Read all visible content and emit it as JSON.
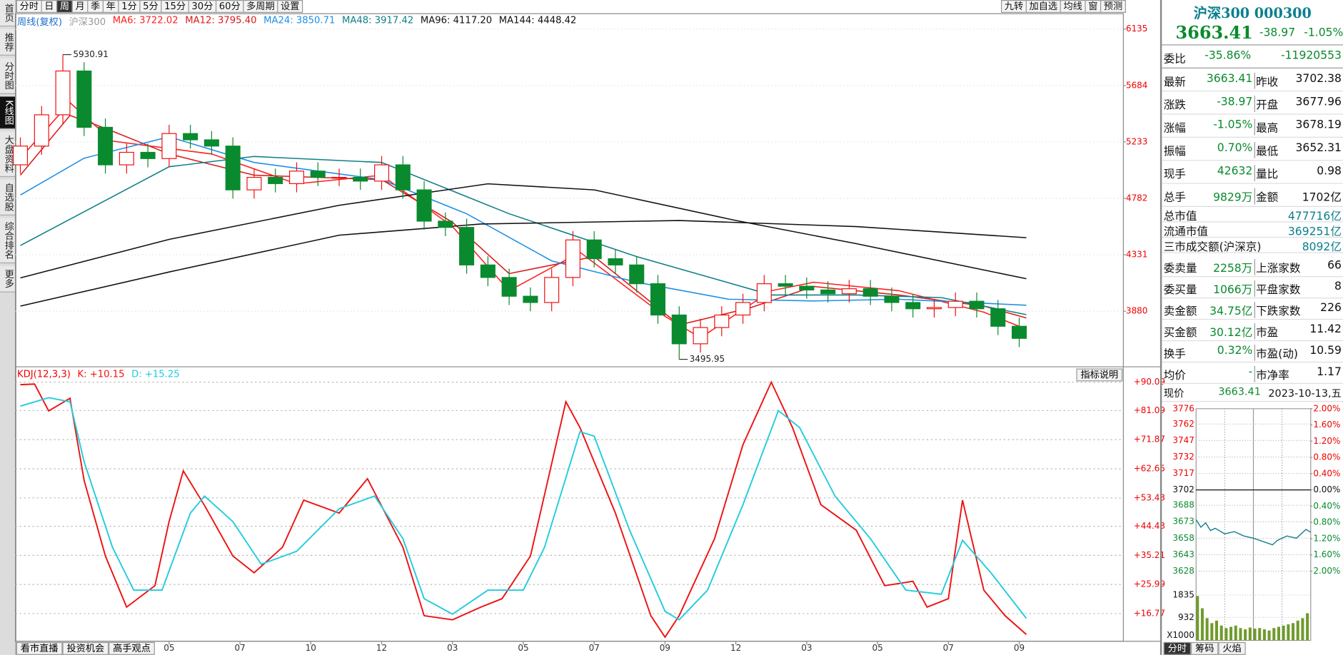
{
  "toolbar": {
    "items": [
      "分时",
      "日",
      "周",
      "月",
      "季",
      "年",
      "1分",
      "5分",
      "15分",
      "30分",
      "60分",
      "多周期",
      "设置"
    ],
    "selected": 2,
    "right_items": [
      "九转",
      "加自选",
      "均线",
      "窗",
      "预测"
    ]
  },
  "sidebar": {
    "items": [
      "首页",
      "推荐",
      "分时图",
      "K线图",
      "大盘资料",
      "自选股",
      "综合排名",
      "更多"
    ],
    "selected": 3
  },
  "bottom_tabs": [
    "看市直播",
    "投资机会",
    "高手观点"
  ],
  "indicator_button": "指标说明",
  "chart_data": [
    {
      "type": "candlestick",
      "period": "周线(复权)",
      "title": "沪深300",
      "x": [
        0,
        3,
        6,
        9,
        12,
        15,
        18,
        21,
        24,
        27,
        30,
        33,
        36,
        39,
        42,
        45,
        48,
        51,
        54,
        57,
        60,
        63,
        66,
        69,
        72,
        75,
        78,
        81,
        84,
        87,
        90,
        93,
        96,
        99,
        102,
        105,
        108,
        111,
        114,
        117,
        120,
        123,
        126,
        129,
        132,
        135,
        138,
        141
      ],
      "open": [
        5050,
        5200,
        5450,
        5800,
        5350,
        5050,
        5150,
        5100,
        5300,
        5250,
        5200,
        4850,
        4950,
        4900,
        5000,
        4950,
        4950,
        4920,
        5050,
        4850,
        4600,
        4550,
        4250,
        4150,
        4000,
        3950,
        4150,
        4450,
        4300,
        4250,
        4100,
        3850,
        3620,
        3750,
        3850,
        3950,
        4100,
        4080,
        4050,
        4020,
        4060,
        4000,
        3950,
        3900,
        3910,
        3960,
        3900,
        3760
      ],
      "high": [
        5270,
        5520,
        5930.91,
        5870,
        5420,
        5220,
        5220,
        5370,
        5370,
        5320,
        5270,
        5020,
        5020,
        5070,
        5070,
        5020,
        5020,
        5120,
        5120,
        4920,
        4670,
        4620,
        4320,
        4220,
        4070,
        4220,
        4520,
        4520,
        4370,
        4320,
        4170,
        3920,
        3820,
        3920,
        4020,
        4170,
        4170,
        4150,
        4120,
        4130,
        4130,
        4070,
        4020,
        3980,
        4030,
        4030,
        3970,
        3830
      ],
      "low": [
        4980,
        5130,
        5380,
        5280,
        4980,
        4980,
        5030,
        5030,
        5180,
        5130,
        4780,
        4780,
        4830,
        4830,
        4880,
        4880,
        4850,
        4850,
        4780,
        4530,
        4480,
        4180,
        4080,
        3930,
        3880,
        3880,
        4080,
        4230,
        4180,
        4030,
        3780,
        3495.95,
        3550,
        3680,
        3780,
        3880,
        4010,
        3980,
        3950,
        3950,
        3930,
        3880,
        3830,
        3830,
        3840,
        3830,
        3690,
        3593
      ],
      "close": [
        5200,
        5450,
        5800,
        5350,
        5050,
        5150,
        5100,
        5300,
        5250,
        5200,
        4850,
        4950,
        4900,
        5000,
        4950,
        4950,
        4920,
        5050,
        4850,
        4600,
        4550,
        4250,
        4150,
        4000,
        3950,
        4150,
        4450,
        4300,
        4250,
        4100,
        3850,
        3620,
        3750,
        3850,
        3950,
        4100,
        4080,
        4050,
        4020,
        4060,
        4000,
        3950,
        3900,
        3910,
        3960,
        3900,
        3760,
        3663.41
      ],
      "up_color": "#ee1111",
      "down_color": "#0a8a2e",
      "series": [
        {
          "name": "MA6: 3722.02",
          "color": "#ff2020",
          "x": [
            0,
            7,
            13,
            27,
            39,
            51,
            61,
            69,
            79,
            91,
            96,
            106,
            112,
            124,
            136,
            142
          ],
          "values": [
            5103,
            5547,
            5240,
            5137,
            4898,
            4967,
            4557,
            4044,
            4352,
            3839,
            3668,
            4044,
            4112,
            4044,
            3873,
            3737
          ]
        },
        {
          "name": "MA12: 3795.40",
          "color": "#d81b1b",
          "x": [
            0,
            7,
            12,
            21,
            33,
            51,
            61,
            69,
            81,
            93,
            103,
            112,
            124,
            136,
            142
          ],
          "values": [
            4967,
            5445,
            5342,
            5137,
            4967,
            4932,
            4591,
            4181,
            4317,
            3771,
            3907,
            4078,
            4010,
            3921,
            3826
          ]
        },
        {
          "name": "MA24: 3850.71",
          "color": "#1e8fe8",
          "x": [
            0,
            9,
            21,
            33,
            51,
            63,
            75,
            87,
            100,
            112,
            124,
            142
          ],
          "values": [
            4809,
            5103,
            5274,
            5069,
            4932,
            4659,
            4283,
            4112,
            3976,
            3962,
            3976,
            3928
          ]
        },
        {
          "name": "MA48: 3917.42",
          "color": "#0e7f86",
          "x": [
            0,
            21,
            33,
            51,
            69,
            87,
            106,
            118,
            130,
            142
          ],
          "values": [
            4406,
            5035,
            5117,
            5069,
            4659,
            4317,
            4010,
            4010,
            3989,
            3853
          ]
        },
        {
          "name": "MA96: 4117.20",
          "color": "#111111",
          "x": [
            0,
            21,
            45,
            66,
            81,
            101,
            118,
            142
          ],
          "values": [
            4147,
            4454,
            4727,
            4898,
            4850,
            4605,
            4420,
            4140
          ]
        },
        {
          "name": "MA144: 4448.42",
          "color": "#111111",
          "x": [
            0,
            21,
            45,
            65,
            93,
            118,
            142
          ],
          "values": [
            3921,
            4194,
            4488,
            4577,
            4605,
            4557,
            4468
          ]
        }
      ],
      "annotations": [
        {
          "x": 6,
          "value": 5930.91
        },
        {
          "x": 93,
          "value": 3495.95
        }
      ],
      "xlim": [
        -0.7,
        155.7
      ],
      "xticks": [
        {
          "value": 21,
          "label": "05"
        },
        {
          "value": 31,
          "label": "07"
        },
        {
          "value": 41,
          "label": "10"
        },
        {
          "value": 51,
          "label": "12"
        },
        {
          "value": 61,
          "label": "03"
        },
        {
          "value": 71,
          "label": "05"
        },
        {
          "value": 81,
          "label": "07"
        },
        {
          "value": 91,
          "label": "09"
        },
        {
          "value": 101,
          "label": "12"
        },
        {
          "value": 111,
          "label": "03"
        },
        {
          "value": 121,
          "label": "05"
        },
        {
          "value": 131,
          "label": "07"
        },
        {
          "value": 141,
          "label": "09"
        }
      ],
      "ylim": [
        3443,
        6258
      ],
      "yticks": [
        3880,
        4331,
        4782,
        5233,
        5684,
        6135
      ],
      "grid": true
    },
    {
      "type": "line",
      "title": "KDJ(12,3,3)",
      "series": [
        {
          "name": "K: +10.15",
          "color": "#ee1111",
          "x": [
            0,
            2,
            4,
            7,
            9,
            12,
            15,
            19,
            21,
            23,
            26,
            30,
            33,
            37,
            40,
            45,
            49,
            54,
            57,
            61,
            65,
            68,
            72,
            77,
            79,
            84,
            89,
            91,
            93,
            98,
            102,
            106,
            109,
            113,
            118,
            122,
            126,
            128,
            131,
            133,
            136,
            139,
            142
          ],
          "values": [
            89.3,
            89.5,
            81,
            85,
            59,
            35,
            18.8,
            25.6,
            46,
            62,
            51,
            35,
            29.7,
            37.8,
            52.7,
            48.6,
            59.5,
            37.8,
            16.1,
            14.8,
            18.8,
            21.5,
            35,
            83.9,
            75.7,
            48.6,
            16.1,
            9.3,
            16.1,
            40.5,
            70.3,
            90.1,
            75.7,
            51.3,
            43.2,
            25.6,
            27,
            18.8,
            21.5,
            52.7,
            24.2,
            16.1,
            10.15
          ]
        },
        {
          "name": "D: +15.25",
          "color": "#22ccdd",
          "x": [
            0,
            4,
            7,
            9,
            13,
            16,
            20,
            24,
            26,
            30,
            34,
            39,
            45,
            50,
            54,
            57,
            61,
            66,
            71,
            74,
            79,
            81,
            86,
            91,
            93,
            97,
            102,
            107,
            110,
            115,
            120,
            125,
            130,
            133,
            137,
            142
          ],
          "values": [
            82.5,
            85.2,
            83.9,
            64.9,
            37.8,
            24.2,
            24.2,
            48.6,
            54,
            45.9,
            32.4,
            36.5,
            50,
            54,
            40.5,
            21.5,
            16.6,
            24.2,
            24.2,
            37.8,
            74.4,
            73,
            43.2,
            17.5,
            14.8,
            24.2,
            51.3,
            81.1,
            75.7,
            54,
            40.5,
            24.2,
            22.9,
            40,
            29.7,
            15.25
          ]
        }
      ],
      "xlim": [
        -0.7,
        155.7
      ],
      "ylim": [
        8.0,
        94.7
      ],
      "yticks": [
        {
          "value": 16.77,
          "label": "+16.77"
        },
        {
          "value": 25.99,
          "label": "+25.99"
        },
        {
          "value": 35.21,
          "label": "+35.21"
        },
        {
          "value": 44.43,
          "label": "+44.43"
        },
        {
          "value": 53.43,
          "label": "+53.43"
        },
        {
          "value": 62.65,
          "label": "+62.65"
        },
        {
          "value": 71.87,
          "label": "+71.87"
        },
        {
          "value": 81.09,
          "label": "+81.09"
        },
        {
          "value": 90.09,
          "label": "+90.09"
        }
      ],
      "grid": true
    },
    {
      "type": "intraday",
      "x": [
        0,
        10,
        20,
        30,
        40,
        60,
        80,
        100,
        120,
        140,
        160,
        170,
        190,
        210,
        230,
        240
      ],
      "values": [
        3675,
        3668,
        3672,
        3665,
        3667,
        3662,
        3664,
        3660,
        3658,
        3655,
        3652,
        3656,
        3660,
        3658,
        3666,
        3663.41
      ],
      "color": "#1a7f8a",
      "xlim": [
        0,
        240
      ],
      "ylim": [
        3628,
        3776
      ],
      "yticks": [
        3776,
        3762,
        3747,
        3732,
        3717,
        3702,
        3688,
        3673,
        3658,
        3643,
        3628
      ],
      "y2lim": [
        -2.0,
        2.0
      ],
      "y2ticks": [
        {
          "value": 2.0,
          "label": "2.00%"
        },
        {
          "value": 1.6,
          "label": "1.60%"
        },
        {
          "value": 1.2,
          "label": "1.20%"
        },
        {
          "value": 0.8,
          "label": "0.80%"
        },
        {
          "value": 0.4,
          "label": "0.40%"
        },
        {
          "value": 0,
          "label": "0.00%"
        },
        {
          "value": -0.4,
          "label": "0.40%"
        },
        {
          "value": -0.8,
          "label": "0.80%"
        },
        {
          "value": -1.2,
          "label": "1.20%"
        },
        {
          "value": -1.6,
          "label": "1.60%"
        },
        {
          "value": -2.0,
          "label": "2.00%"
        }
      ],
      "volume": {
        "x": [
          0,
          10,
          20,
          30,
          40,
          50,
          60,
          70,
          80,
          90,
          100,
          110,
          120,
          130,
          140,
          150,
          160,
          170,
          180,
          190,
          200,
          210,
          220,
          230
        ],
        "values": [
          1800,
          1300,
          900,
          700,
          800,
          600,
          500,
          550,
          600,
          500,
          450,
          520,
          480,
          500,
          450,
          400,
          500,
          550,
          600,
          650,
          700,
          800,
          900,
          1100
        ],
        "color": "#6f9a2c",
        "ylim": [
          0,
          2806
        ],
        "yticks": [
          932,
          1835
        ],
        "unit_label": "X1000"
      },
      "tabs": [
        "分时",
        "筹码",
        "火焰"
      ]
    }
  ],
  "quote": {
    "title": "沪深300 000300",
    "price": "3663.41",
    "change": "-38.97",
    "change_pct": "-1.05%",
    "weibi": [
      "委比",
      "-35.86%",
      "-11920553"
    ],
    "rows_a": [
      [
        "最新",
        "3663.41",
        "昨收",
        "3702.38"
      ],
      [
        "涨跌",
        "-38.97",
        "开盘",
        "3677.96"
      ],
      [
        "涨幅",
        "-1.05%",
        "最高",
        "3678.19"
      ],
      [
        "振幅",
        "0.70%",
        "最低",
        "3652.31"
      ],
      [
        "现手",
        "42632",
        "量比",
        "0.98"
      ],
      [
        "总手",
        "9829万",
        "金额",
        "1702亿"
      ]
    ],
    "rows_b": [
      [
        "总市值",
        "477716亿"
      ],
      [
        "流通市值",
        "369251亿"
      ],
      [
        "三市成交额(沪深京)",
        "8092亿"
      ]
    ],
    "rows_c": [
      [
        "委卖量",
        "2258万",
        "上涨家数",
        "66"
      ],
      [
        "委买量",
        "1066万",
        "平盘家数",
        "8"
      ],
      [
        "卖金额",
        "34.75亿",
        "下跌家数",
        "226"
      ],
      [
        "买金额",
        "30.12亿",
        "市盈",
        "11.42"
      ],
      [
        "换手",
        "0.32%",
        "市盈(动)",
        "10.59"
      ],
      [
        "均价",
        "-",
        "市净率",
        "1.17"
      ]
    ],
    "now": [
      "现价",
      "3663.41",
      "2023-10-13,五"
    ]
  }
}
